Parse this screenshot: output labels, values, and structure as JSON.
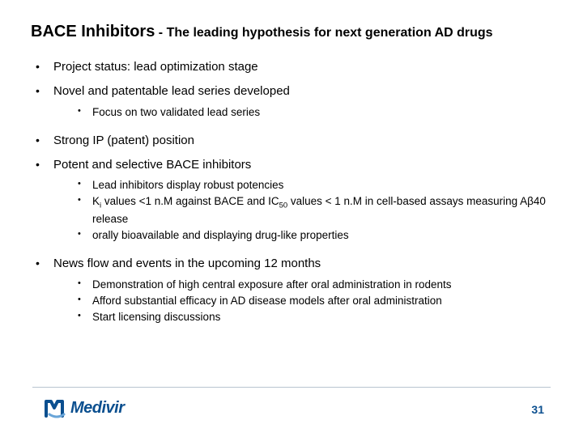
{
  "title": {
    "main": "BACE Inhibitors",
    "sep": " - ",
    "sub": "The leading hypothesis for next generation AD drugs"
  },
  "bullets": [
    {
      "text": "Project status: lead optimization stage"
    },
    {
      "text": "Novel and patentable lead series developed",
      "sub": [
        {
          "text": "Focus on two validated lead series"
        }
      ]
    },
    {
      "text": "Strong IP (patent) position"
    },
    {
      "text": "Potent and selective BACE inhibitors",
      "sub": [
        {
          "text": "Lead inhibitors display robust potencies"
        },
        {
          "html": "K<sub>i</sub> values &lt;1 n.M  against BACE and IC<sub>50</sub> values &lt; 1 n.M in cell-based assays measuring Aβ40 release"
        },
        {
          "text": "orally bioavailable and displaying drug-like properties"
        }
      ]
    },
    {
      "text": "News flow and events in the upcoming 12 months",
      "sub": [
        {
          "text": "Demonstration of high central exposure after oral administration in rodents"
        },
        {
          "text": "Afford substantial efficacy in AD disease models after oral administration"
        },
        {
          "text": "Start licensing discussions"
        }
      ]
    }
  ],
  "footer": {
    "logo_text": "Medivir",
    "page": "31",
    "brand_color": "#0b4f8f"
  }
}
